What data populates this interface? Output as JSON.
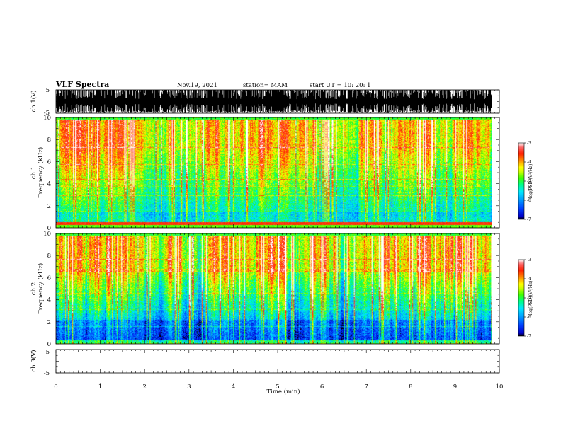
{
  "header": {
    "title": "VLF Spectra",
    "date": "Nov.19, 2021",
    "station": "station= MAM",
    "start_ut": "start  UT =   10: 20: 1"
  },
  "chart_data": [
    {
      "type": "line",
      "panel": "ch1-waveform",
      "ylabel": "ch.1(V)",
      "ylim": [
        -5,
        5
      ],
      "yticks": [
        "5",
        "-5"
      ],
      "xlim": [
        0,
        10
      ],
      "signal": "dense impulsive waveform spanning the full range, 0 to 9.83 min",
      "data_end_min": 9.83
    },
    {
      "type": "heatmap",
      "panel": "ch1-spectrogram",
      "ylabel": "Frequency  (kHz)",
      "channel_label": "ch.1",
      "ylim": [
        0,
        10
      ],
      "yticks": [
        "0",
        "2",
        "4",
        "6",
        "8",
        "10"
      ],
      "xlim": [
        0,
        10
      ],
      "data_end_min": 9.83,
      "colorbar": {
        "label": "log(PSD)(V²/Hz)",
        "range": [
          -7,
          -3
        ],
        "ticks": [
          "-3",
          "-4",
          "-5",
          "-6",
          "-7"
        ],
        "colormap": [
          "#000000",
          "#0000c8",
          "#0040ff",
          "#00a0ff",
          "#00e8ff",
          "#00ff80",
          "#40ff00",
          "#c8ff00",
          "#ffff00",
          "#ff9600",
          "#ff2000",
          "#ff6464",
          "#ffffff"
        ]
      }
    },
    {
      "type": "heatmap",
      "panel": "ch2-spectrogram",
      "ylabel": "Frequency  (kHz)",
      "channel_label": "ch.2",
      "ylim": [
        0,
        10
      ],
      "yticks": [
        "0",
        "2",
        "4",
        "6",
        "8",
        "10"
      ],
      "xlim": [
        0,
        10
      ],
      "data_end_min": 9.83,
      "colorbar": {
        "label": "log(PSD)(V²/Hz)",
        "range": [
          -7,
          -3
        ],
        "ticks": [
          "-3",
          "-4",
          "-5",
          "-6",
          "-7"
        ],
        "colormap": [
          "#000000",
          "#0000c8",
          "#0040ff",
          "#00a0ff",
          "#00e8ff",
          "#00ff80",
          "#40ff00",
          "#c8ff00",
          "#ffff00",
          "#ff9600",
          "#ff2000",
          "#ff6464",
          "#ffffff"
        ]
      }
    },
    {
      "type": "line",
      "panel": "ch3-waveform",
      "ylabel": "ch.3(V)",
      "ylim": [
        -5,
        5
      ],
      "yticks": [
        "5",
        "-5"
      ],
      "xlim": [
        0,
        10
      ],
      "signal": "flat line at approximately -1.2 V",
      "flat_value": -1.2,
      "xlabel": "Time  (min)",
      "xticks": [
        "0",
        "1",
        "2",
        "3",
        "4",
        "5",
        "6",
        "7",
        "8",
        "9",
        "10"
      ]
    }
  ]
}
